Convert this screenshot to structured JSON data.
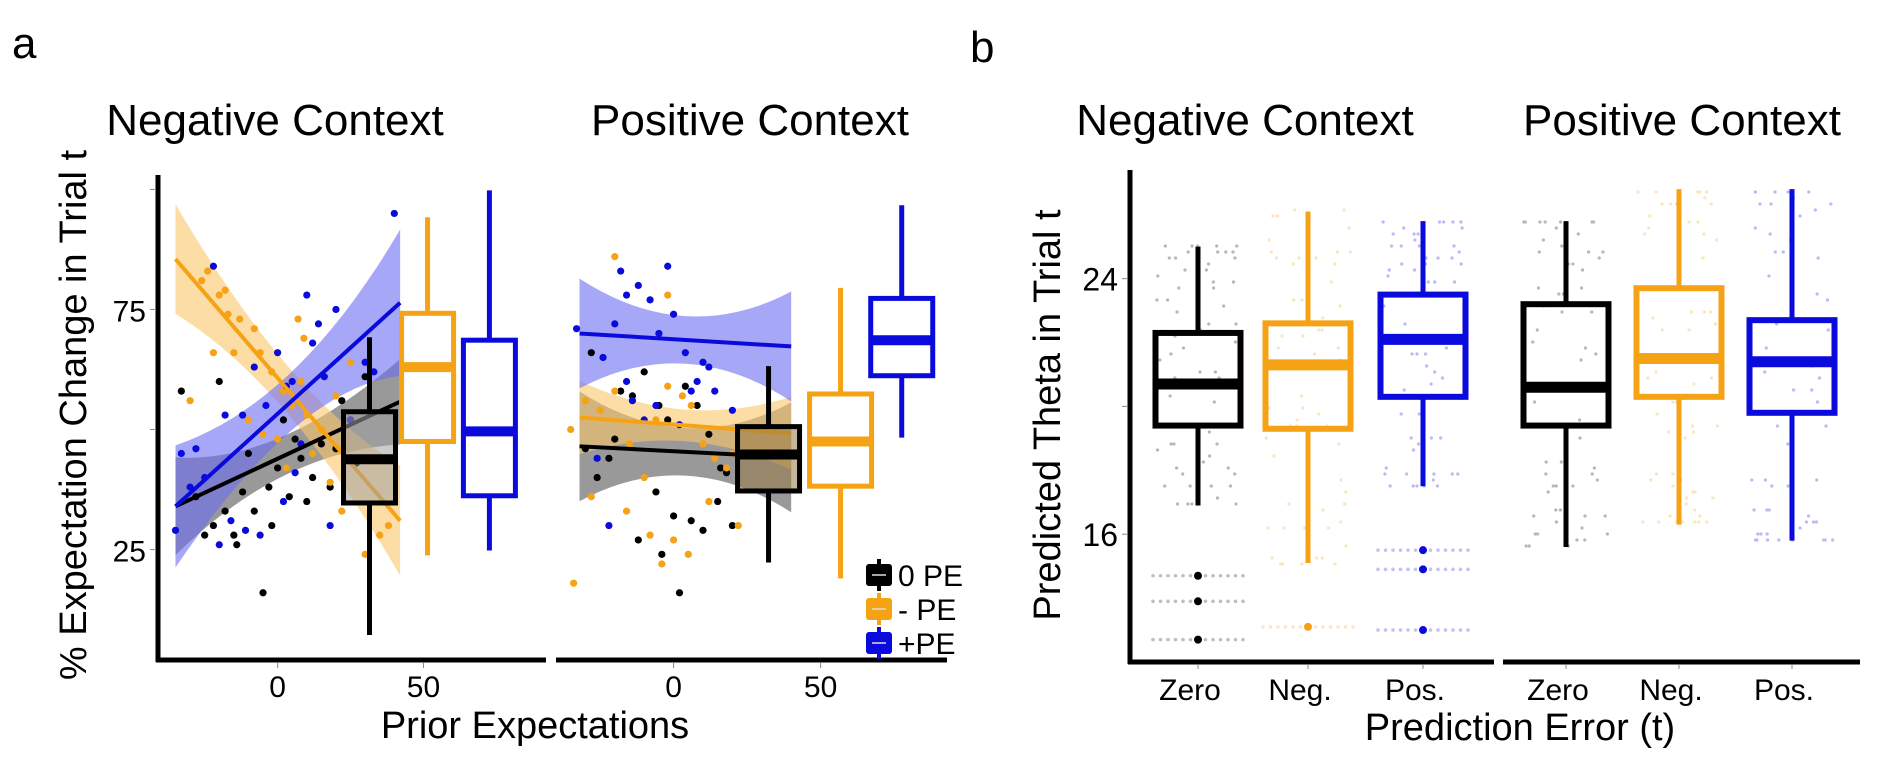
{
  "figure": {
    "panel_labels": [
      "a",
      "b"
    ]
  },
  "colors": {
    "zero_pe": "#000000",
    "neg_pe": "#F5A214",
    "pos_pe": "#0A0ADC",
    "pos_band": "#6C6CF4",
    "neg_band": "#FCC66A",
    "zero_band": "#555555"
  },
  "chart_data": [
    {
      "panel": "a",
      "type": "scatter",
      "ylabel": "% Expectation Change in Trial t",
      "xlabel": "Prior Expectations",
      "ylim": [
        2,
        103
      ],
      "yticks": [
        25,
        50,
        75,
        100
      ],
      "ytick_labels": [
        "25",
        "",
        "75",
        ""
      ],
      "grid": false,
      "legend": {
        "placement": "bottom-right",
        "entries": [
          "0 PE",
          "- PE",
          "+PE"
        ]
      },
      "facets": [
        {
          "title": "Negative Context",
          "xlim": [
            -41,
            92
          ],
          "xticks": [
            0,
            50
          ],
          "xtick_labels": [
            "0",
            "50"
          ],
          "fits": [
            {
              "series": "0 PE",
              "x": [
                -35,
                42
              ],
              "y": [
                34,
                55.8
              ],
              "ci_halfwidth": [
                8,
                7
              ]
            },
            {
              "series": "- PE",
              "x": [
                -35,
                42
              ],
              "y": [
                85.5,
                31
              ],
              "ci_halfwidth": [
                9,
                9
              ]
            },
            {
              "series": "+PE",
              "x": [
                -35,
                42
              ],
              "y": [
                34,
                76.4
              ],
              "ci_halfwidth": [
                10,
                12
              ]
            }
          ],
          "boxes": [
            {
              "series": "0 PE",
              "x": 31.5,
              "whisker_low": 7.2,
              "q1": 34.7,
              "median": 43.8,
              "q3": 53.7,
              "whisker_high": 69.2
            },
            {
              "series": "- PE",
              "x": 51.4,
              "whisker_low": 23.8,
              "q1": 47.5,
              "median": 63.0,
              "q3": 74.2,
              "whisker_high": 94.2
            },
            {
              "series": "+PE",
              "x": 72.6,
              "whisker_low": 24.8,
              "q1": 36.2,
              "median": 49.6,
              "q3": 68.6,
              "whisker_high": 99.8
            }
          ],
          "points": {
            "0 PE": [
              [
                -33,
                58
              ],
              [
                -20,
                60
              ],
              [
                -12,
                37
              ],
              [
                -18,
                33
              ],
              [
                -22,
                30
              ],
              [
                -25,
                28
              ],
              [
                -15,
                28
              ],
              [
                -8,
                33
              ],
              [
                -3,
                38
              ],
              [
                0,
                42
              ],
              [
                4,
                36
              ],
              [
                8,
                44
              ],
              [
                12,
                40
              ],
              [
                15,
                47
              ],
              [
                -10,
                45
              ],
              [
                -5,
                16
              ],
              [
                20,
                46
              ],
              [
                25,
                52
              ],
              [
                27,
                43
              ],
              [
                30,
                61
              ],
              [
                -28,
                36
              ],
              [
                -2,
                30
              ],
              [
                6,
                48
              ],
              [
                10,
                35
              ],
              [
                18,
                38
              ],
              [
                -14,
                26
              ],
              [
                2,
                52
              ],
              [
                22,
                56
              ]
            ],
            "- PE": [
              [
                -26,
                81
              ],
              [
                -24,
                83
              ],
              [
                -20,
                78
              ],
              [
                -18,
                79
              ],
              [
                -17,
                74
              ],
              [
                -22,
                66
              ],
              [
                -13,
                73
              ],
              [
                -8,
                71
              ],
              [
                -6,
                66
              ],
              [
                -2,
                62
              ],
              [
                2,
                58
              ],
              [
                5,
                55
              ],
              [
                8,
                60
              ],
              [
                10,
                53
              ],
              [
                -30,
                56
              ],
              [
                -15,
                66
              ],
              [
                0,
                48
              ],
              [
                12,
                45
              ],
              [
                15,
                50
              ],
              [
                20,
                57
              ],
              [
                -10,
                52
              ],
              [
                3,
                42
              ],
              [
                18,
                39
              ],
              [
                22,
                33
              ],
              [
                30,
                24
              ],
              [
                35,
                28
              ],
              [
                38,
                30
              ],
              [
                -5,
                49
              ],
              [
                25,
                64
              ],
              [
                7,
                73
              ],
              [
                9,
                69
              ]
            ],
            "+PE": [
              [
                -35,
                29
              ],
              [
                -33,
                45
              ],
              [
                -30,
                38
              ],
              [
                -25,
                40
              ],
              [
                -22,
                84
              ],
              [
                -18,
                53
              ],
              [
                -12,
                53
              ],
              [
                -8,
                63
              ],
              [
                -4,
                55
              ],
              [
                0,
                66
              ],
              [
                3,
                59
              ],
              [
                5,
                60
              ],
              [
                8,
                47
              ],
              [
                10,
                78
              ],
              [
                12,
                68
              ],
              [
                14,
                72
              ],
              [
                16,
                61
              ],
              [
                20,
                75
              ],
              [
                25,
                52
              ],
              [
                30,
                64
              ],
              [
                40,
                95
              ],
              [
                -20,
                26
              ],
              [
                -16,
                31
              ],
              [
                -11,
                29
              ],
              [
                -6,
                28
              ],
              [
                2,
                35
              ],
              [
                6,
                41
              ],
              [
                -28,
                46
              ],
              [
                18,
                30
              ],
              [
                33,
                62
              ]
            ]
          }
        },
        {
          "title": "Positive Context",
          "xlim": [
            -40,
            93
          ],
          "xticks": [
            0,
            50
          ],
          "xtick_labels": [
            "0",
            "50"
          ],
          "fits": [
            {
              "series": "0 PE",
              "x": [
                -32,
                40
              ],
              "y": [
                46.5,
                44.2
              ],
              "ci_halfwidth": [
                9,
                9
              ]
            },
            {
              "series": "- PE",
              "x": [
                -32,
                40
              ],
              "y": [
                52.5,
                49.2
              ],
              "ci_halfwidth": [
                6,
                6
              ]
            },
            {
              "series": "+PE",
              "x": [
                -32,
                40
              ],
              "y": [
                70,
                67.3
              ],
              "ci_halfwidth": [
                9,
                9
              ]
            }
          ],
          "boxes": [
            {
              "series": "0 PE",
              "x": 32.3,
              "whisker_low": 22.3,
              "q1": 37.2,
              "median": 44.8,
              "q3": 50.6,
              "whisker_high": 63.2
            },
            {
              "series": "- PE",
              "x": 56.8,
              "whisker_low": 19.0,
              "q1": 38.2,
              "median": 47.5,
              "q3": 57.4,
              "whisker_high": 79.5
            },
            {
              "series": "+PE",
              "x": 77.6,
              "whisker_low": 48.3,
              "q1": 61.2,
              "median": 68.6,
              "q3": 77.3,
              "whisker_high": 96.7
            }
          ],
          "points": {
            "0 PE": [
              [
                -28,
                66
              ],
              [
                -18,
                58
              ],
              [
                -14,
                57
              ],
              [
                -10,
                62
              ],
              [
                -5,
                55
              ],
              [
                -2,
                52
              ],
              [
                4,
                59
              ],
              [
                8,
                55
              ],
              [
                12,
                49
              ],
              [
                16,
                42
              ],
              [
                -30,
                46
              ],
              [
                -22,
                44
              ],
              [
                -6,
                37
              ],
              [
                0,
                32
              ],
              [
                6,
                31
              ],
              [
                10,
                29
              ],
              [
                -12,
                27
              ],
              [
                -4,
                24
              ],
              [
                -26,
                40
              ],
              [
                2,
                16
              ],
              [
                15,
                35
              ],
              [
                18,
                41
              ],
              [
                -20,
                48
              ],
              [
                20,
                30
              ]
            ],
            "- PE": [
              [
                -35,
                50
              ],
              [
                -30,
                56
              ],
              [
                -25,
                54
              ],
              [
                -20,
                58
              ],
              [
                -15,
                47
              ],
              [
                -10,
                40
              ],
              [
                -6,
                52
              ],
              [
                -2,
                59
              ],
              [
                3,
                57
              ],
              [
                6,
                55
              ],
              [
                10,
                47
              ],
              [
                14,
                44
              ],
              [
                18,
                42
              ],
              [
                -28,
                36
              ],
              [
                -16,
                33
              ],
              [
                -8,
                28
              ],
              [
                0,
                27
              ],
              [
                5,
                24
              ],
              [
                -20,
                86
              ],
              [
                -34,
                18
              ],
              [
                -2,
                78
              ],
              [
                -4,
                22
              ],
              [
                12,
                35
              ],
              [
                22,
                30
              ],
              [
                20,
                45
              ]
            ],
            "+PE": [
              [
                -33,
                71
              ],
              [
                -24,
                65
              ],
              [
                -20,
                72
              ],
              [
                -16,
                78
              ],
              [
                -12,
                80
              ],
              [
                -8,
                77
              ],
              [
                -5,
                70
              ],
              [
                0,
                74
              ],
              [
                4,
                66
              ],
              [
                8,
                60
              ],
              [
                10,
                64
              ],
              [
                12,
                63
              ],
              [
                -2,
                84
              ],
              [
                -16,
                60
              ],
              [
                -14,
                56
              ],
              [
                -6,
                55
              ],
              [
                -10,
                52
              ],
              [
                2,
                51
              ],
              [
                6,
                58
              ],
              [
                14,
                58
              ],
              [
                -22,
                30
              ],
              [
                -26,
                44
              ],
              [
                20,
                54
              ],
              [
                -18,
                83
              ]
            ]
          }
        }
      ]
    },
    {
      "panel": "b",
      "type": "box",
      "ylabel": "Predicted Theta in Trial t",
      "xlabel": "Prediction Error (t)",
      "ylim": [
        12,
        27.4
      ],
      "yticks": [
        16,
        20,
        24
      ],
      "ytick_labels": [
        "16",
        "",
        "24"
      ],
      "grid": false,
      "facets": [
        {
          "title": "Negative Context",
          "categories": [
            "Zero",
            "Neg.",
            "Pos."
          ],
          "boxes": [
            {
              "category": "Zero",
              "series": "0 PE",
              "whisker_low": 16.9,
              "q1": 19.4,
              "median": 20.7,
              "q3": 22.3,
              "whisker_high": 25.0,
              "outliers": [
                14.7,
                13.9,
                12.7
              ]
            },
            {
              "category": "Neg.",
              "series": "- PE",
              "whisker_low": 15.1,
              "q1": 19.3,
              "median": 21.3,
              "q3": 22.6,
              "whisker_high": 26.1,
              "outliers": [
                13.1
              ]
            },
            {
              "category": "Pos.",
              "series": "+PE",
              "whisker_low": 17.5,
              "q1": 20.3,
              "median": 22.1,
              "q3": 23.5,
              "whisker_high": 25.8,
              "outliers": [
                15.5,
                14.9,
                13.0
              ]
            }
          ]
        },
        {
          "title": "Positive Context",
          "categories": [
            "Zero",
            "Neg.",
            "Pos."
          ],
          "boxes": [
            {
              "category": "Zero",
              "series": "0 PE",
              "whisker_low": 15.6,
              "q1": 19.4,
              "median": 20.6,
              "q3": 23.2,
              "whisker_high": 25.8,
              "outliers": []
            },
            {
              "category": "Neg.",
              "series": "- PE",
              "whisker_low": 16.3,
              "q1": 20.3,
              "median": 21.5,
              "q3": 23.7,
              "whisker_high": 26.8,
              "outliers": []
            },
            {
              "category": "Pos.",
              "series": "+PE",
              "whisker_low": 15.8,
              "q1": 19.8,
              "median": 21.4,
              "q3": 22.7,
              "whisker_high": 26.8,
              "outliers": []
            }
          ]
        }
      ]
    }
  ]
}
